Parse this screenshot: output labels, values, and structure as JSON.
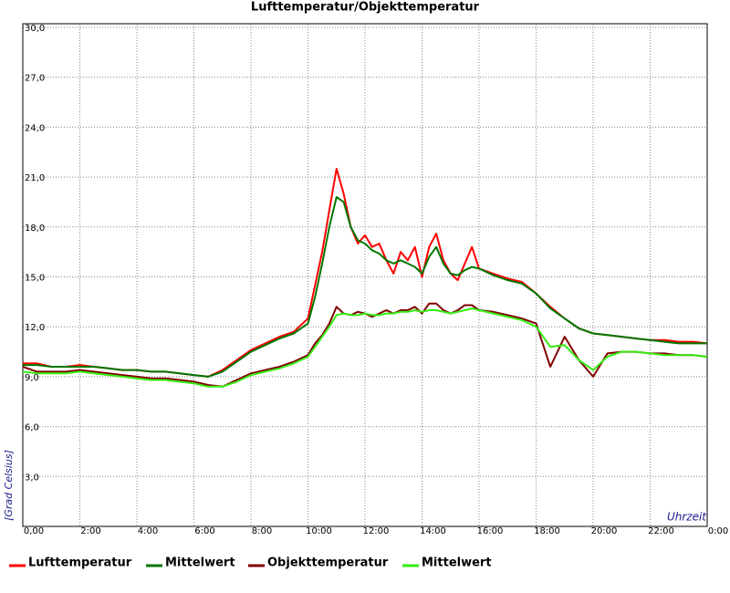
{
  "chart_data": {
    "type": "line",
    "title": "Lufttemperatur/Objekttemperatur",
    "y_label": "[Grad Celsius]",
    "x_label": "Uhrzeit",
    "x": [
      0,
      0.5,
      1,
      1.5,
      2,
      2.5,
      3,
      3.5,
      4,
      4.5,
      5,
      5.5,
      6,
      6.5,
      7,
      7.5,
      8,
      8.5,
      9,
      9.5,
      10,
      10.25,
      10.5,
      10.75,
      11,
      11.25,
      11.5,
      11.75,
      12,
      12.25,
      12.5,
      12.75,
      13,
      13.25,
      13.5,
      13.75,
      14,
      14.25,
      14.5,
      14.75,
      15,
      15.25,
      15.5,
      15.75,
      16,
      16.5,
      17,
      17.5,
      18,
      18.5,
      19,
      19.5,
      20,
      20.5,
      21,
      21.5,
      22,
      22.5,
      23,
      23.5,
      24
    ],
    "series": [
      {
        "name": "Lufttemperatur",
        "color": "#ff0000",
        "values": [
          9.8,
          9.8,
          9.6,
          9.6,
          9.7,
          9.6,
          9.5,
          9.4,
          9.4,
          9.3,
          9.3,
          9.2,
          9.1,
          9.0,
          9.4,
          10.0,
          10.6,
          11.0,
          11.4,
          11.7,
          12.5,
          14.5,
          16.5,
          19.0,
          21.5,
          20.0,
          18.0,
          17.0,
          17.5,
          16.8,
          17.0,
          16.0,
          15.2,
          16.5,
          16.0,
          16.8,
          15.0,
          16.8,
          17.6,
          16.0,
          15.2,
          14.8,
          15.8,
          16.8,
          15.5,
          15.2,
          14.9,
          14.7,
          14.0,
          13.2,
          12.5,
          11.9,
          11.6,
          11.5,
          11.4,
          11.3,
          11.2,
          11.2,
          11.1,
          11.1,
          11.0
        ]
      },
      {
        "name": "Mittelwert",
        "color": "#007700",
        "values": [
          9.7,
          9.7,
          9.6,
          9.6,
          9.6,
          9.6,
          9.5,
          9.4,
          9.4,
          9.3,
          9.3,
          9.2,
          9.1,
          9.0,
          9.3,
          9.9,
          10.5,
          10.9,
          11.3,
          11.6,
          12.2,
          13.8,
          15.8,
          18.0,
          19.8,
          19.5,
          18.0,
          17.2,
          17.0,
          16.6,
          16.4,
          16.0,
          15.8,
          16.0,
          15.8,
          15.6,
          15.2,
          16.2,
          16.8,
          15.8,
          15.2,
          15.1,
          15.4,
          15.6,
          15.5,
          15.1,
          14.8,
          14.6,
          14.0,
          13.1,
          12.5,
          11.9,
          11.6,
          11.5,
          11.4,
          11.3,
          11.2,
          11.1,
          11.0,
          11.0,
          11.0
        ]
      },
      {
        "name": "Objekttemperatur",
        "color": "#800000",
        "values": [
          9.6,
          9.3,
          9.3,
          9.3,
          9.4,
          9.3,
          9.2,
          9.1,
          9.0,
          8.9,
          8.9,
          8.8,
          8.7,
          8.5,
          8.4,
          8.8,
          9.2,
          9.4,
          9.6,
          9.9,
          10.3,
          11.0,
          11.5,
          12.2,
          13.2,
          12.8,
          12.7,
          12.9,
          12.8,
          12.6,
          12.8,
          13.0,
          12.8,
          13.0,
          13.0,
          13.2,
          12.8,
          13.4,
          13.4,
          13.0,
          12.8,
          13.0,
          13.3,
          13.3,
          13.0,
          12.9,
          12.7,
          12.5,
          12.2,
          9.6,
          11.4,
          10.0,
          9.0,
          10.4,
          10.5,
          10.5,
          10.4,
          10.4,
          10.3,
          10.3,
          10.2
        ]
      },
      {
        "name": "Mittelwert",
        "color": "#33ee11",
        "values": [
          9.3,
          9.2,
          9.2,
          9.2,
          9.3,
          9.2,
          9.1,
          9.0,
          8.9,
          8.8,
          8.8,
          8.7,
          8.6,
          8.4,
          8.4,
          8.7,
          9.1,
          9.3,
          9.5,
          9.8,
          10.2,
          10.8,
          11.4,
          12.0,
          12.7,
          12.8,
          12.7,
          12.7,
          12.8,
          12.7,
          12.7,
          12.8,
          12.8,
          12.9,
          12.9,
          13.0,
          12.9,
          13.0,
          13.0,
          12.9,
          12.8,
          12.9,
          13.0,
          13.1,
          13.0,
          12.8,
          12.6,
          12.4,
          12.0,
          10.8,
          10.9,
          10.0,
          9.4,
          10.2,
          10.5,
          10.5,
          10.4,
          10.3,
          10.3,
          10.3,
          10.2
        ]
      }
    ],
    "xlim": [
      0,
      24
    ],
    "xticks": [
      {
        "value": 0,
        "label": "0,00"
      },
      {
        "value": 2,
        "label": "2:00"
      },
      {
        "value": 4,
        "label": "4:00"
      },
      {
        "value": 6,
        "label": "6:00"
      },
      {
        "value": 8,
        "label": "8:00"
      },
      {
        "value": 10,
        "label": "10:00"
      },
      {
        "value": 12,
        "label": "12:00"
      },
      {
        "value": 14,
        "label": "14:00"
      },
      {
        "value": 16,
        "label": "16:00"
      },
      {
        "value": 18,
        "label": "18:00"
      },
      {
        "value": 20,
        "label": "20:00"
      },
      {
        "value": 22,
        "label": "22:00"
      },
      {
        "value": 24,
        "label": "0:00"
      }
    ],
    "ylim": [
      0,
      30
    ],
    "yticks": [
      {
        "value": 3,
        "label": "3,0"
      },
      {
        "value": 6,
        "label": "6,0"
      },
      {
        "value": 9,
        "label": "9,0"
      },
      {
        "value": 12,
        "label": "12,0"
      },
      {
        "value": 15,
        "label": "15,0"
      },
      {
        "value": 18,
        "label": "18,0"
      },
      {
        "value": 21,
        "label": "21,0"
      },
      {
        "value": 24,
        "label": "24,0"
      },
      {
        "value": 27,
        "label": "27,0"
      },
      {
        "value": 30,
        "label": "30,0"
      }
    ],
    "grid": true,
    "legend": "bottom"
  }
}
